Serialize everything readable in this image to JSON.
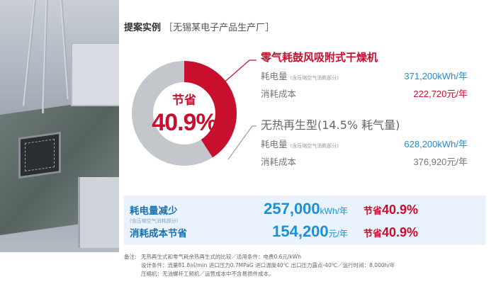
{
  "header": {
    "title": "提案实例",
    "subtitle": "［无锡某电子产品生产厂］"
  },
  "donut": {
    "center_label": "节省",
    "center_value": "40.9%",
    "saved_fraction": 0.409,
    "saved_color": "#c8102e",
    "rest_color": "#c3c7cc"
  },
  "option_a": {
    "name": "零气耗鼓风吸附式干燥机",
    "power_label": "耗电量",
    "power_note": "(含压缩空气消耗部分)",
    "power_value": "371,200kWh/年",
    "cost_label": "消耗成本",
    "cost_value": "222,720元/年"
  },
  "option_b": {
    "name": "无热再生型(14.5% 耗气量)",
    "power_label": "耗电量",
    "power_note": "(含压缩空气消耗部分)",
    "power_value": "628,200kWh/年",
    "cost_label": "消耗成本",
    "cost_value": "376,920元/年"
  },
  "summary": {
    "power_reduction": {
      "label": "耗电量减少",
      "note": "(含压缩空气消耗部分)",
      "value": "257,000",
      "unit": "kWh/年",
      "save_label": "节省",
      "save_value": "40.9%"
    },
    "cost_saving": {
      "label": "消耗成本节省",
      "value": "154,200",
      "unit": "元/年",
      "save_label": "节省",
      "save_value": "40.9%"
    }
  },
  "notes": {
    "lead": "备注:",
    "line1": "无热再生式和零气耗余热再生式的比较／适用条件：电费0.6元/kWh",
    "line2": "设计条件：流量81.8㎥/min 进口压力0.7MPaG 进口温度40℃ 出口压力露点-40℃／运行时间：8,000h/年",
    "line3": "压缩机：无油螺杆工频机／运营成本中不含易损件成本。"
  }
}
